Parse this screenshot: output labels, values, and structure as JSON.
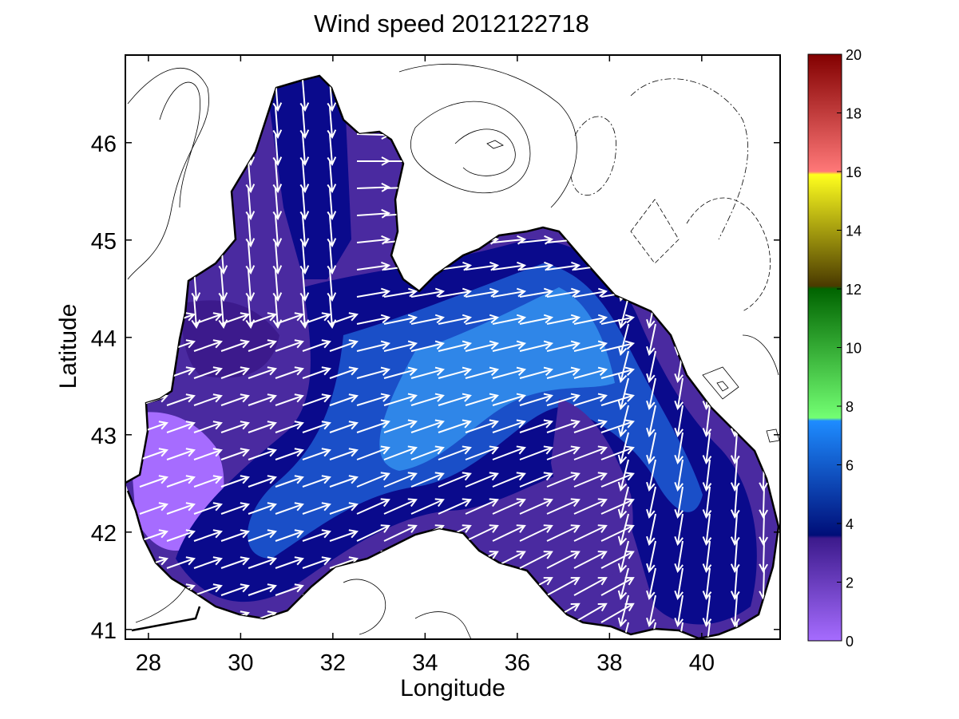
{
  "title": "Wind speed 2012122718",
  "xlabel": "Longitude",
  "ylabel": "Latitude",
  "x_ticks": [
    28,
    30,
    32,
    34,
    36,
    38,
    40
  ],
  "y_ticks": [
    41,
    42,
    43,
    44,
    45,
    46
  ],
  "xlim": [
    27.5,
    41.7
  ],
  "ylim": [
    40.9,
    46.9
  ],
  "colorbar": {
    "min": 0,
    "max": 20,
    "ticks": [
      0,
      2,
      4,
      6,
      8,
      10,
      12,
      14,
      16,
      18,
      20
    ],
    "stops": [
      {
        "v": 0,
        "color": "#a66cff"
      },
      {
        "v": 3.5,
        "color": "#3c1a8c"
      },
      {
        "v": 3.6,
        "color": "#000e78"
      },
      {
        "v": 7.5,
        "color": "#1e8cff"
      },
      {
        "v": 7.6,
        "color": "#73ff73"
      },
      {
        "v": 12,
        "color": "#006400"
      },
      {
        "v": 12.1,
        "color": "#4a3a00"
      },
      {
        "v": 15.9,
        "color": "#ffff1e"
      },
      {
        "v": 16,
        "color": "#ff7878"
      },
      {
        "v": 20,
        "color": "#820000"
      }
    ]
  },
  "map_colors": {
    "land": "#ffffff",
    "coast": "#000000",
    "contour": "#000000",
    "arrow": "#ffffff",
    "fill_low": "#a66cff",
    "fill_mid": "#4a2aa0",
    "fill_dark": "#0a0a8c",
    "fill_high": "#2f86e8"
  }
}
